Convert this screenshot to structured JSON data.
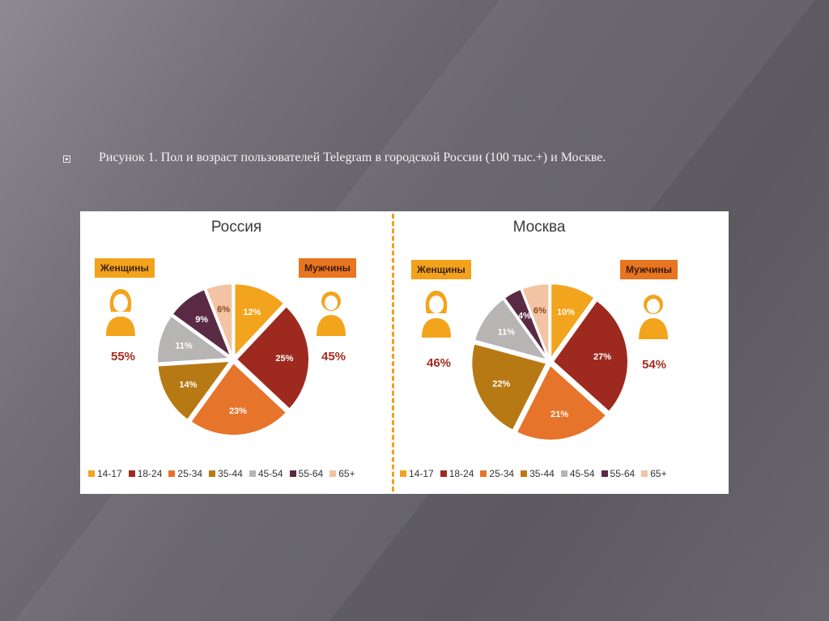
{
  "caption": "Рисунок 1. Пол и возраст пользователей Telegram в городской России (100 тыс.+) и Москве.",
  "colors": {
    "c14": "#f2a41c",
    "c18": "#9e2a1f",
    "c25": "#e6742a",
    "c35": "#b77913",
    "c45": "#b7b4b4",
    "c55": "#5a2a44",
    "c65": "#f2c4a4"
  },
  "chart_data": [
    {
      "type": "pie",
      "title": "Россия",
      "categories": [
        "14-17",
        "18-24",
        "25-34",
        "35-44",
        "45-54",
        "55-64",
        "65+"
      ],
      "values": [
        12,
        25,
        23,
        14,
        11,
        9,
        6
      ],
      "labels": [
        "12%",
        "25%",
        "23%",
        "14%",
        "11%",
        "9%",
        "6%"
      ],
      "women": {
        "label": "Женщины",
        "value": "55%"
      },
      "men": {
        "label": "Мужчины",
        "value": "45%"
      }
    },
    {
      "type": "pie",
      "title": "Москва",
      "categories": [
        "14-17",
        "18-24",
        "25-34",
        "35-44",
        "45-54",
        "55-64",
        "65+"
      ],
      "values": [
        10,
        27,
        21,
        22,
        11,
        4,
        6
      ],
      "labels": [
        "10%",
        "27%",
        "21%",
        "22%",
        "11%",
        "4%",
        "6%"
      ],
      "women": {
        "label": "Женщины",
        "value": "46%"
      },
      "men": {
        "label": "Мужчины",
        "value": "54%"
      }
    }
  ]
}
